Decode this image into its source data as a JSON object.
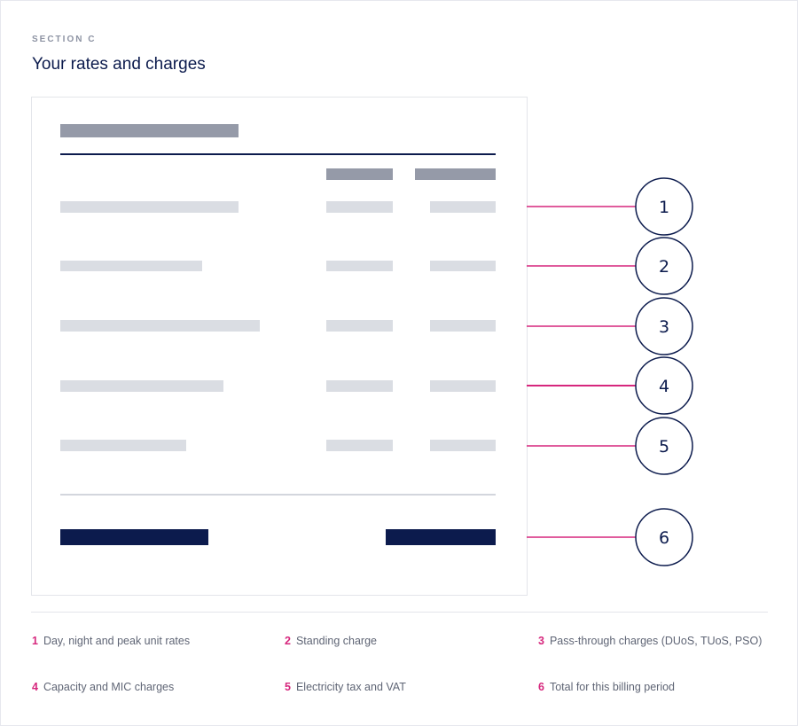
{
  "header": {
    "eyebrow": "SECTION C",
    "title": "Your rates and charges"
  },
  "callouts": [
    "1",
    "2",
    "3",
    "4",
    "5",
    "6"
  ],
  "colors": {
    "navy": "#0c1b4d",
    "accent": "#d6277d",
    "header_bar": "#959aa8",
    "placeholder_bar": "#dadde3"
  },
  "legend": [
    {
      "num": "1",
      "text": "Day, night and peak unit rates"
    },
    {
      "num": "2",
      "text": "Standing charge"
    },
    {
      "num": "3",
      "text": "Pass-through charges (DUoS, TUoS, PSO)"
    },
    {
      "num": "4",
      "text": "Capacity and MIC charges"
    },
    {
      "num": "5",
      "text": "Electricity tax and VAT"
    },
    {
      "num": "6",
      "text": "Total for this billing period"
    }
  ]
}
